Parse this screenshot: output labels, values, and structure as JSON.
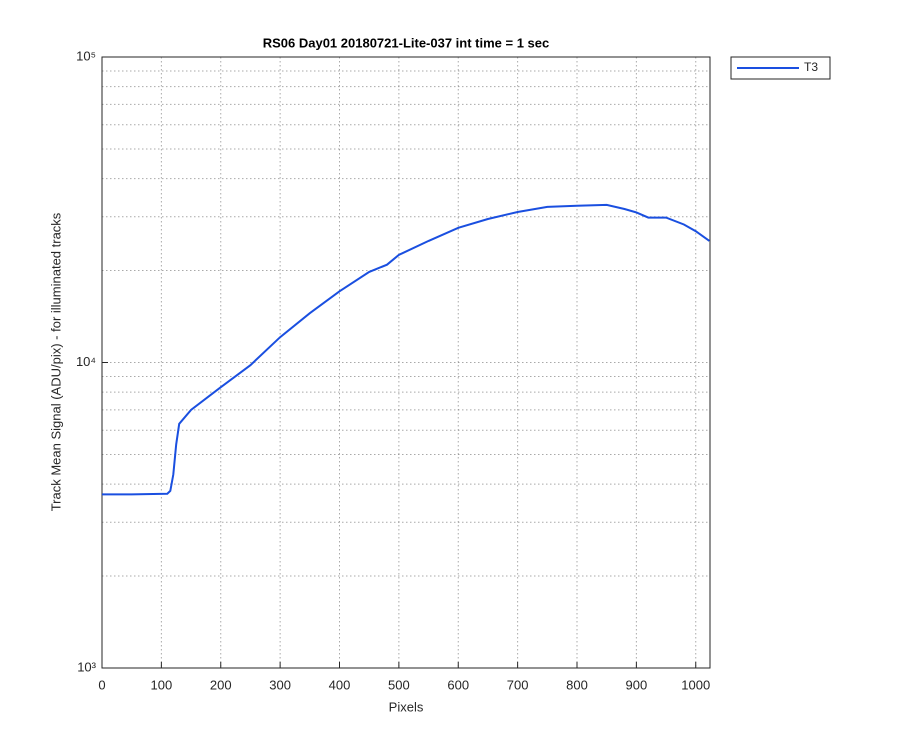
{
  "chart_data": {
    "type": "line",
    "title": "RS06 Day01 20180721-Lite-037 int time = 1 sec",
    "x_label": "Pixels",
    "y_label": "Track Mean Signal (ADU/pix) - for illuminated tracks",
    "y_scale": "log",
    "grid": true,
    "legend_position": "northeastoutside",
    "xlim": [
      0,
      1024
    ],
    "ylim": [
      1000,
      100000
    ],
    "xticks": [
      0,
      100,
      200,
      300,
      400,
      500,
      600,
      700,
      800,
      900,
      1000
    ],
    "yticks": [
      {
        "value": 1000,
        "label": "10³"
      },
      {
        "value": 10000,
        "label": "10⁴"
      },
      {
        "value": 100000,
        "label": "10⁵"
      }
    ],
    "yminorticks": [
      2000,
      3000,
      4000,
      5000,
      6000,
      7000,
      8000,
      9000,
      20000,
      30000,
      40000,
      50000,
      60000,
      70000,
      80000,
      90000
    ],
    "series": [
      {
        "name": "T3",
        "color": "#1a4fe0",
        "x": [
          0,
          50,
          110,
          115,
          120,
          125,
          130,
          150,
          200,
          250,
          300,
          350,
          400,
          450,
          480,
          500,
          550,
          600,
          650,
          700,
          750,
          800,
          850,
          880,
          900,
          920,
          950,
          980,
          1000,
          1023
        ],
        "values": [
          3700,
          3700,
          3720,
          3800,
          4300,
          5400,
          6300,
          7000,
          8300,
          9800,
          12100,
          14500,
          17100,
          19800,
          20900,
          22500,
          25000,
          27600,
          29500,
          31100,
          32300,
          32600,
          32800,
          31800,
          31000,
          29800,
          29800,
          28300,
          26900,
          25000
        ]
      }
    ]
  }
}
